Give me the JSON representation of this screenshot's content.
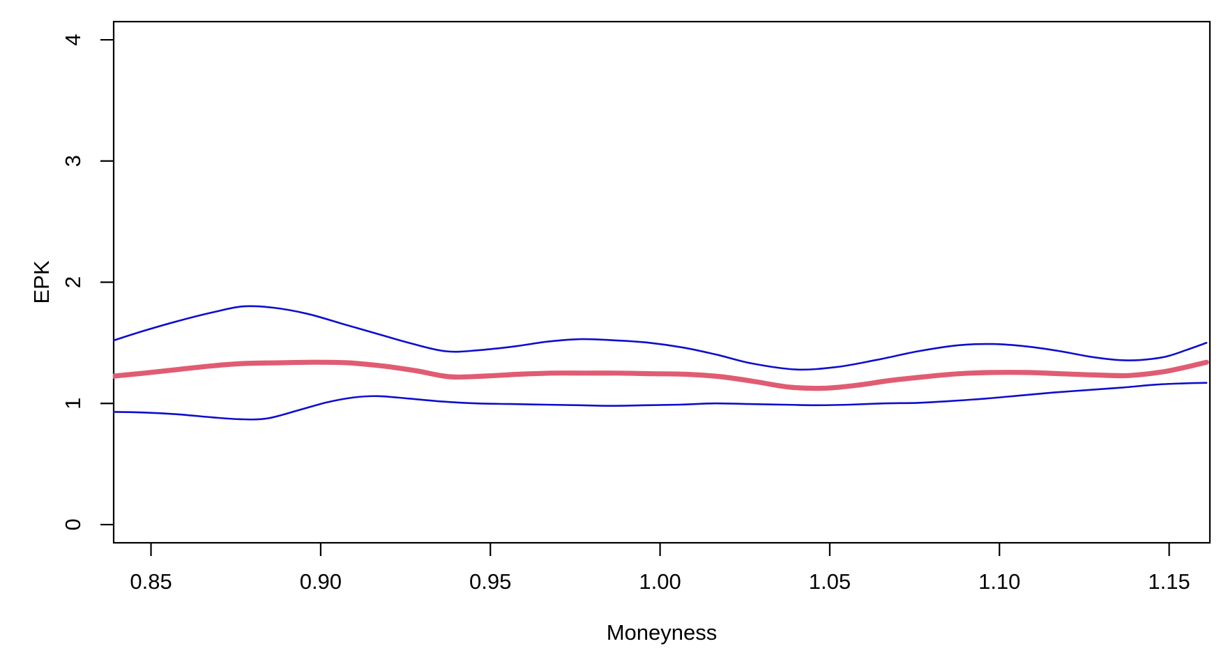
{
  "figure": {
    "background": "#ffffff",
    "axis_color": "#000000"
  },
  "chart_data": {
    "type": "line",
    "title": "",
    "xlabel": "Moneyness",
    "ylabel": "EPK",
    "xlim": [
      0.839,
      1.162
    ],
    "ylim": [
      -0.15,
      4.15
    ],
    "grid": false,
    "legend_position": "none",
    "x_ticks": [
      {
        "value": 0.85,
        "label": "0.85"
      },
      {
        "value": 0.9,
        "label": "0.90"
      },
      {
        "value": 0.95,
        "label": "0.95"
      },
      {
        "value": 1.0,
        "label": "1.00"
      },
      {
        "value": 1.05,
        "label": "1.05"
      },
      {
        "value": 1.1,
        "label": "1.10"
      },
      {
        "value": 1.15,
        "label": "1.15"
      }
    ],
    "y_ticks": [
      {
        "value": 0,
        "label": "0"
      },
      {
        "value": 1,
        "label": "1"
      },
      {
        "value": 2,
        "label": "2"
      },
      {
        "value": 3,
        "label": "3"
      },
      {
        "value": 4,
        "label": "4"
      }
    ],
    "series": [
      {
        "name": "upper-confidence-band",
        "color": "#0D0DCE",
        "stroke_width": 2.6,
        "points": [
          [
            0.839,
            1.52
          ],
          [
            0.848,
            1.6
          ],
          [
            0.858,
            1.68
          ],
          [
            0.868,
            1.75
          ],
          [
            0.877,
            1.8
          ],
          [
            0.886,
            1.79
          ],
          [
            0.896,
            1.74
          ],
          [
            0.906,
            1.66
          ],
          [
            0.916,
            1.58
          ],
          [
            0.926,
            1.5
          ],
          [
            0.937,
            1.43
          ],
          [
            0.947,
            1.44
          ],
          [
            0.957,
            1.47
          ],
          [
            0.967,
            1.51
          ],
          [
            0.977,
            1.53
          ],
          [
            0.987,
            1.52
          ],
          [
            0.997,
            1.5
          ],
          [
            1.007,
            1.46
          ],
          [
            1.017,
            1.4
          ],
          [
            1.027,
            1.33
          ],
          [
            1.04,
            1.28
          ],
          [
            1.052,
            1.3
          ],
          [
            1.064,
            1.36
          ],
          [
            1.076,
            1.43
          ],
          [
            1.088,
            1.48
          ],
          [
            1.098,
            1.49
          ],
          [
            1.108,
            1.47
          ],
          [
            1.118,
            1.43
          ],
          [
            1.128,
            1.38
          ],
          [
            1.138,
            1.355
          ],
          [
            1.148,
            1.38
          ],
          [
            1.155,
            1.44
          ],
          [
            1.161,
            1.5
          ]
        ]
      },
      {
        "name": "epk-estimate",
        "color": "#E05C72",
        "stroke_width": 7.2,
        "points": [
          [
            0.839,
            1.225
          ],
          [
            0.848,
            1.25
          ],
          [
            0.858,
            1.28
          ],
          [
            0.868,
            1.31
          ],
          [
            0.878,
            1.33
          ],
          [
            0.888,
            1.335
          ],
          [
            0.898,
            1.34
          ],
          [
            0.908,
            1.335
          ],
          [
            0.918,
            1.31
          ],
          [
            0.928,
            1.27
          ],
          [
            0.938,
            1.22
          ],
          [
            0.948,
            1.225
          ],
          [
            0.958,
            1.24
          ],
          [
            0.968,
            1.25
          ],
          [
            0.978,
            1.25
          ],
          [
            0.988,
            1.25
          ],
          [
            0.998,
            1.245
          ],
          [
            1.008,
            1.24
          ],
          [
            1.018,
            1.22
          ],
          [
            1.028,
            1.18
          ],
          [
            1.038,
            1.135
          ],
          [
            1.048,
            1.125
          ],
          [
            1.058,
            1.15
          ],
          [
            1.068,
            1.19
          ],
          [
            1.078,
            1.22
          ],
          [
            1.088,
            1.245
          ],
          [
            1.098,
            1.255
          ],
          [
            1.108,
            1.255
          ],
          [
            1.118,
            1.245
          ],
          [
            1.128,
            1.235
          ],
          [
            1.138,
            1.23
          ],
          [
            1.148,
            1.26
          ],
          [
            1.155,
            1.3
          ],
          [
            1.161,
            1.34
          ]
        ]
      },
      {
        "name": "lower-confidence-band",
        "color": "#0D0DCE",
        "stroke_width": 2.6,
        "points": [
          [
            0.839,
            0.93
          ],
          [
            0.848,
            0.925
          ],
          [
            0.858,
            0.91
          ],
          [
            0.868,
            0.885
          ],
          [
            0.876,
            0.87
          ],
          [
            0.884,
            0.875
          ],
          [
            0.893,
            0.94
          ],
          [
            0.902,
            1.01
          ],
          [
            0.91,
            1.05
          ],
          [
            0.917,
            1.06
          ],
          [
            0.926,
            1.04
          ],
          [
            0.936,
            1.015
          ],
          [
            0.946,
            1.0
          ],
          [
            0.956,
            0.995
          ],
          [
            0.966,
            0.99
          ],
          [
            0.976,
            0.985
          ],
          [
            0.986,
            0.98
          ],
          [
            0.996,
            0.985
          ],
          [
            1.006,
            0.99
          ],
          [
            1.016,
            1.0
          ],
          [
            1.026,
            0.995
          ],
          [
            1.036,
            0.99
          ],
          [
            1.046,
            0.985
          ],
          [
            1.056,
            0.99
          ],
          [
            1.066,
            1.0
          ],
          [
            1.076,
            1.005
          ],
          [
            1.086,
            1.02
          ],
          [
            1.096,
            1.04
          ],
          [
            1.106,
            1.065
          ],
          [
            1.116,
            1.09
          ],
          [
            1.126,
            1.11
          ],
          [
            1.136,
            1.13
          ],
          [
            1.146,
            1.155
          ],
          [
            1.154,
            1.165
          ],
          [
            1.161,
            1.17
          ]
        ]
      }
    ]
  }
}
